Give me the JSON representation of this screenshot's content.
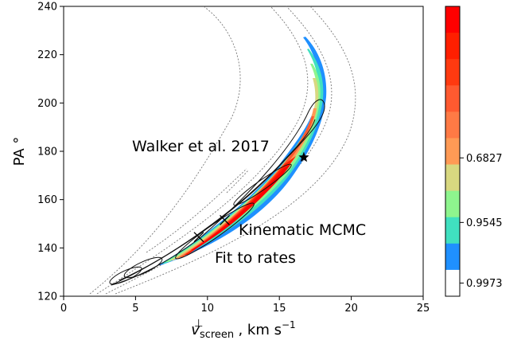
{
  "chart_data": {
    "type": "heatmap",
    "title": "",
    "xlabel": "v_screen^⊥, km s^-1",
    "xlabel_parts": {
      "v": "v",
      "sup": "⊥",
      "sub": "screen",
      "unit": ", km s",
      "exp": "−1"
    },
    "ylabel": "PA °",
    "xlim": [
      0,
      25
    ],
    "ylim": [
      120,
      240
    ],
    "x_ticks": [
      "0",
      "5",
      "10",
      "15",
      "20",
      "25"
    ],
    "y_ticks": [
      "120",
      "140",
      "160",
      "180",
      "200",
      "220",
      "240"
    ],
    "grid": false,
    "annotations": [
      {
        "text": "Walker et al. 2017",
        "x": 16.7,
        "y": 177.5,
        "marker": "star"
      },
      {
        "text": "Kinematic MCMC",
        "x": 11.2,
        "y": 151.5,
        "marker": "x"
      },
      {
        "text": "Fit to rates",
        "x": 9.4,
        "y": 144.5,
        "marker": "x"
      }
    ],
    "colorbar": {
      "tick_labels": [
        "0.6827",
        "0.9545",
        "0.9973"
      ],
      "colors": [
        "#ff0000",
        "#ff1f00",
        "#ff3a10",
        "#ff5a30",
        "#ff7a45",
        "#ff9a55",
        "#d8d880",
        "#8ef58e",
        "#40e0c0",
        "#1f90ff",
        "#ffffff"
      ]
    },
    "curve_samples": [
      [
        7.0,
        133
      ],
      [
        8.5,
        139
      ],
      [
        10.0,
        145
      ],
      [
        11.5,
        151
      ],
      [
        13.0,
        157
      ],
      [
        14.5,
        164
      ],
      [
        16.0,
        172
      ],
      [
        17.0,
        180
      ],
      [
        17.6,
        190
      ],
      [
        17.7,
        200
      ],
      [
        17.2,
        210
      ],
      [
        16.3,
        220
      ],
      [
        15.9,
        226
      ]
    ]
  }
}
